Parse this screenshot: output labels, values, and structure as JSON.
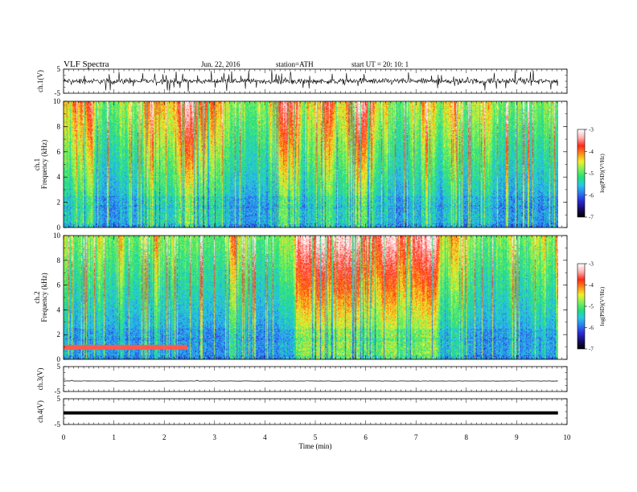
{
  "header": {
    "title": "VLF  Spectra",
    "date": "Jun. 22, 2016",
    "station": "station=ATH",
    "start_ut": "start  UT  =   20: 10: 1"
  },
  "chart_data": {
    "type": "heatmap",
    "x_axis": {
      "label": "Time  (min)",
      "range": [
        0,
        10
      ],
      "ticks": [
        "0",
        "1",
        "2",
        "3",
        "4",
        "5",
        "6",
        "7",
        "8",
        "9",
        "10"
      ],
      "data_extent_min": 9.82
    },
    "panels": [
      {
        "id": "ch1_waveform",
        "type": "line",
        "ylabel": "ch.1(V)",
        "ylim": [
          -5,
          5
        ],
        "yticks": [
          "5",
          "-5"
        ],
        "color": "#000000",
        "trace": "dense noisy waveform"
      },
      {
        "id": "ch1_spectrogram",
        "type": "heatmap",
        "ylabel": "ch.1\nFrequency  (kHz)",
        "ylim": [
          0,
          10
        ],
        "yticks": [
          "0",
          "2",
          "4",
          "6",
          "8",
          "10"
        ],
        "colorbar": {
          "label": "log(PSD)(V²/Hz)",
          "range": [
            -7,
            -3
          ],
          "ticks": [
            "-3",
            "-4",
            "-5",
            "-6",
            "-7"
          ]
        }
      },
      {
        "id": "ch2_spectrogram",
        "type": "heatmap",
        "ylabel": "ch.2\nFrequency  (kHz)",
        "ylim": [
          0,
          10
        ],
        "yticks": [
          "0",
          "2",
          "4",
          "6",
          "8",
          "10"
        ],
        "colorbar": {
          "label": "log(PSD)(V²/Hz)",
          "range": [
            -7,
            -3
          ],
          "ticks": [
            "-3",
            "-4",
            "-5",
            "-6",
            "-7"
          ]
        }
      },
      {
        "id": "ch3_waveform",
        "type": "line",
        "ylabel": "ch.3(V)",
        "ylim": [
          -5,
          5
        ],
        "yticks": [
          "5",
          "-5"
        ],
        "level": -0.8,
        "color": "#000000"
      },
      {
        "id": "ch4_waveform",
        "type": "line",
        "ylabel": "ch.4(V)",
        "ylim": [
          -5,
          5
        ],
        "yticks": [
          "5",
          "-5"
        ],
        "level": -0.5,
        "color": "#000000"
      }
    ],
    "colormap": [
      "#000000",
      "#1a0c6b",
      "#2a2bd6",
      "#2f7cf2",
      "#27c9e6",
      "#24e07a",
      "#7ef05a",
      "#f2f02a",
      "#ff8c1a",
      "#ff2a1a",
      "#ffb0b0",
      "#ffffff"
    ]
  }
}
